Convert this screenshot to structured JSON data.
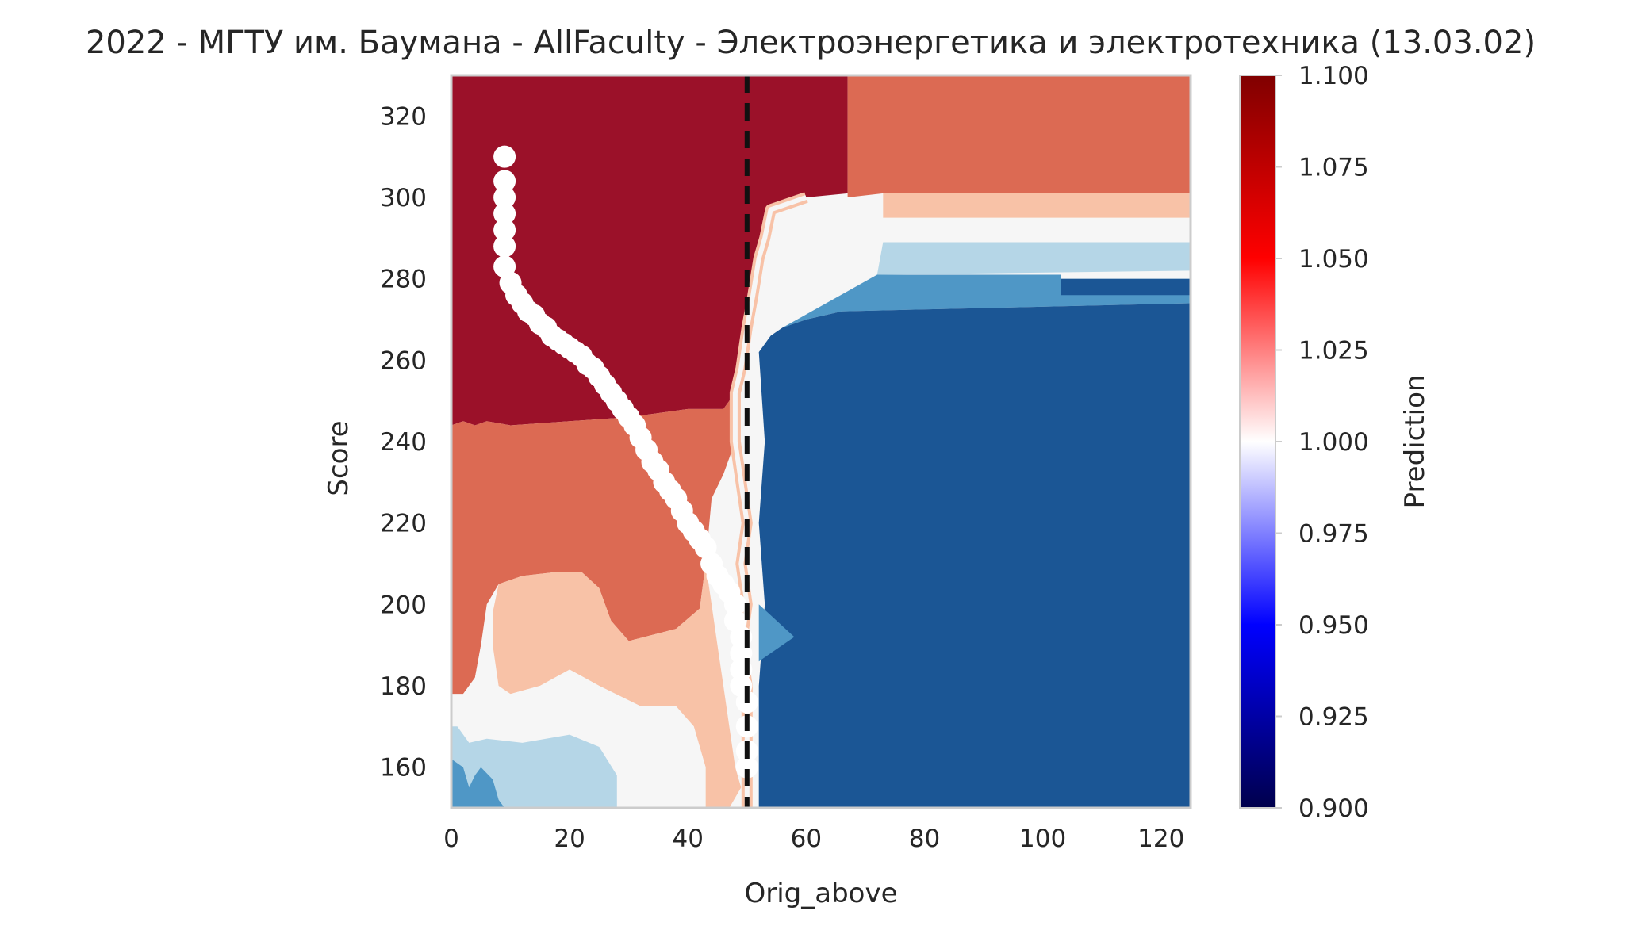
{
  "chart_data": {
    "type": "heatmap",
    "title": "2022 - МГТУ им. Баумана - AllFaculty - Электроэнергетика и электротехника (13.03.02)",
    "xlabel": "Orig_above",
    "ylabel": "Score",
    "xlim": [
      0,
      125
    ],
    "ylim": [
      150,
      330
    ],
    "x_ticks": [
      0,
      20,
      40,
      60,
      80,
      100,
      120
    ],
    "y_ticks": [
      160,
      180,
      200,
      220,
      240,
      260,
      280,
      300,
      320
    ],
    "grid": false,
    "colorbar": {
      "label": "Prediction",
      "range": [
        0.9,
        1.1
      ],
      "ticks": [
        "0.900",
        "0.925",
        "0.950",
        "0.975",
        "1.000",
        "1.025",
        "1.050",
        "1.075",
        "1.100"
      ],
      "colormap": "seismic",
      "stops": [
        "#00004c",
        "#0000ff",
        "#ffffff",
        "#ff0000",
        "#800000"
      ]
    },
    "level_colors": {
      "1.060": "#9b1129",
      "1.030": "#dc6a53",
      "1.010": "#f8c2a7",
      "1.000": "#f6f6f6",
      "0.990": "#b5d6e7",
      "0.975": "#4f97c6",
      "0.950": "#1b5695"
    },
    "regions": [
      {
        "level": "1.060",
        "polygon": [
          [
            0,
            330
          ],
          [
            67,
            330
          ],
          [
            67,
            301
          ],
          [
            60,
            300
          ],
          [
            56,
            298
          ],
          [
            54,
            297
          ],
          [
            53,
            290
          ],
          [
            52,
            285
          ],
          [
            51,
            276
          ],
          [
            50,
            268
          ],
          [
            49,
            258
          ],
          [
            48,
            252
          ],
          [
            46,
            248
          ],
          [
            40,
            248
          ],
          [
            30,
            246
          ],
          [
            20,
            245
          ],
          [
            10,
            244
          ],
          [
            6,
            245
          ],
          [
            4,
            244
          ],
          [
            2,
            245
          ],
          [
            0,
            244
          ]
        ]
      },
      {
        "level": "1.060",
        "polygon": [
          [
            0,
            219
          ],
          [
            2,
            220
          ],
          [
            4,
            221
          ],
          [
            6,
            220
          ],
          [
            6,
            214
          ],
          [
            3,
            210
          ],
          [
            0,
            209
          ]
        ]
      },
      {
        "level": "1.030",
        "polygon": [
          [
            67,
            330
          ],
          [
            125,
            330
          ],
          [
            125,
            301
          ],
          [
            73,
            301
          ],
          [
            67,
            300
          ]
        ]
      },
      {
        "level": "1.010",
        "polygon": [
          [
            73,
            301
          ],
          [
            125,
            301
          ],
          [
            125,
            295
          ],
          [
            73,
            295
          ]
        ]
      },
      {
        "level": "1.000",
        "polygon": [
          [
            73,
            295
          ],
          [
            125,
            295
          ],
          [
            125,
            289
          ],
          [
            73,
            289
          ]
        ]
      },
      {
        "level": "0.990",
        "polygon": [
          [
            73,
            289
          ],
          [
            125,
            289
          ],
          [
            125,
            282
          ],
          [
            72,
            281
          ]
        ]
      },
      {
        "level": "0.975",
        "polygon": [
          [
            72,
            281
          ],
          [
            103,
            281
          ],
          [
            103,
            280
          ],
          [
            125,
            280
          ],
          [
            125,
            274
          ],
          [
            66,
            272
          ],
          [
            60,
            270
          ],
          [
            56,
            268
          ]
        ]
      },
      {
        "level": "0.950",
        "polygon": [
          [
            103,
            280
          ],
          [
            125,
            280
          ],
          [
            125,
            276
          ],
          [
            103,
            276
          ]
        ]
      },
      {
        "level": "0.950",
        "polygon": [
          [
            125,
            274
          ],
          [
            125,
            150
          ],
          [
            52,
            150
          ],
          [
            52,
            160
          ],
          [
            52,
            180
          ],
          [
            53,
            200
          ],
          [
            52,
            220
          ],
          [
            53,
            240
          ],
          [
            52,
            262
          ],
          [
            54,
            266
          ],
          [
            56,
            268
          ],
          [
            60,
            270
          ],
          [
            66,
            272
          ]
        ]
      },
      {
        "level": "0.975",
        "polygon": [
          [
            52,
            200
          ],
          [
            55,
            196
          ],
          [
            58,
            192
          ],
          [
            54,
            188
          ],
          [
            52,
            186
          ]
        ]
      },
      {
        "level": "1.030",
        "polygon": [
          [
            0,
            244
          ],
          [
            2,
            245
          ],
          [
            4,
            244
          ],
          [
            6,
            245
          ],
          [
            10,
            244
          ],
          [
            20,
            245
          ],
          [
            30,
            246
          ],
          [
            40,
            248
          ],
          [
            46,
            248
          ],
          [
            48,
            252
          ],
          [
            48,
            240
          ],
          [
            46,
            232
          ],
          [
            44,
            226
          ],
          [
            43,
            210
          ],
          [
            42,
            199
          ],
          [
            38,
            194
          ],
          [
            30,
            191
          ],
          [
            27,
            196
          ],
          [
            25,
            204
          ],
          [
            22,
            208
          ],
          [
            18,
            208
          ],
          [
            12,
            207
          ],
          [
            8,
            205
          ],
          [
            6,
            200
          ],
          [
            5,
            190
          ],
          [
            4,
            182
          ],
          [
            2,
            178
          ],
          [
            0,
            178
          ]
        ]
      },
      {
        "level": "1.010",
        "polygon": [
          [
            8,
            205
          ],
          [
            12,
            207
          ],
          [
            18,
            208
          ],
          [
            22,
            208
          ],
          [
            25,
            204
          ],
          [
            27,
            196
          ],
          [
            30,
            191
          ],
          [
            38,
            194
          ],
          [
            42,
            199
          ],
          [
            43,
            210
          ],
          [
            44,
            200
          ],
          [
            45,
            190
          ],
          [
            46,
            180
          ],
          [
            47,
            170
          ],
          [
            48,
            160
          ],
          [
            49,
            155
          ],
          [
            47,
            150
          ],
          [
            43,
            150
          ],
          [
            43,
            160
          ],
          [
            41,
            170
          ],
          [
            38,
            175
          ],
          [
            32,
            175
          ],
          [
            25,
            180
          ],
          [
            20,
            184
          ],
          [
            15,
            180
          ],
          [
            10,
            178
          ],
          [
            8,
            180
          ],
          [
            7,
            190
          ],
          [
            7,
            198
          ]
        ]
      },
      {
        "level": "1.000",
        "polygon": [
          [
            0,
            178
          ],
          [
            2,
            178
          ],
          [
            4,
            182
          ],
          [
            5,
            190
          ],
          [
            6,
            178
          ],
          [
            10,
            178
          ],
          [
            15,
            180
          ],
          [
            20,
            184
          ],
          [
            25,
            180
          ],
          [
            32,
            175
          ],
          [
            38,
            175
          ],
          [
            41,
            170
          ],
          [
            43,
            160
          ],
          [
            43,
            150
          ],
          [
            28,
            150
          ],
          [
            28,
            158
          ],
          [
            25,
            165
          ],
          [
            20,
            168
          ],
          [
            12,
            166
          ],
          [
            6,
            167
          ],
          [
            3,
            166
          ],
          [
            1,
            170
          ],
          [
            0,
            170
          ]
        ]
      },
      {
        "level": "0.990",
        "polygon": [
          [
            0,
            170
          ],
          [
            1,
            170
          ],
          [
            3,
            166
          ],
          [
            6,
            167
          ],
          [
            12,
            166
          ],
          [
            20,
            168
          ],
          [
            25,
            165
          ],
          [
            28,
            158
          ],
          [
            28,
            150
          ],
          [
            0,
            150
          ]
        ]
      },
      {
        "level": "0.975",
        "polygon": [
          [
            0,
            162
          ],
          [
            2,
            160
          ],
          [
            3,
            155
          ],
          [
            4,
            158
          ],
          [
            5,
            160
          ],
          [
            7,
            157
          ],
          [
            8,
            152
          ],
          [
            9,
            150
          ],
          [
            0,
            150
          ]
        ]
      }
    ],
    "boundary_band": [
      [
        60,
        300
      ],
      [
        56,
        298
      ],
      [
        54,
        297
      ],
      [
        53,
        290
      ],
      [
        52,
        285
      ],
      [
        51,
        276
      ],
      [
        50,
        268
      ],
      [
        49,
        258
      ],
      [
        48,
        252
      ],
      [
        48,
        240
      ],
      [
        49,
        230
      ],
      [
        50,
        220
      ],
      [
        49,
        210
      ],
      [
        50,
        200
      ],
      [
        49,
        190
      ],
      [
        50,
        180
      ],
      [
        50,
        170
      ],
      [
        50,
        160
      ],
      [
        50,
        150
      ]
    ],
    "path_points_x": [
      9,
      9,
      9,
      9,
      9,
      9,
      9,
      10,
      11,
      12,
      13,
      14,
      15,
      16,
      17,
      18,
      19,
      20,
      21,
      22,
      23,
      24,
      25,
      26,
      27,
      28,
      29,
      30,
      31,
      32,
      33,
      34,
      35,
      36,
      37,
      38,
      39,
      40,
      41,
      42,
      43,
      44,
      45,
      46,
      47,
      48,
      48,
      49,
      49,
      49,
      49,
      50,
      50,
      50,
      50
    ],
    "path_points_y": [
      310,
      304,
      300,
      296,
      292,
      288,
      283,
      279,
      276,
      274,
      272,
      271,
      269,
      268,
      266,
      265,
      264,
      263,
      262,
      261,
      259,
      258,
      256,
      254,
      252,
      250,
      248,
      246,
      244,
      241,
      238,
      235,
      233,
      230,
      228,
      226,
      223,
      220,
      218,
      216,
      214,
      210,
      207,
      205,
      203,
      200,
      196,
      192,
      188,
      184,
      180,
      176,
      170,
      164,
      160
    ],
    "dashed_line_x": 50
  }
}
